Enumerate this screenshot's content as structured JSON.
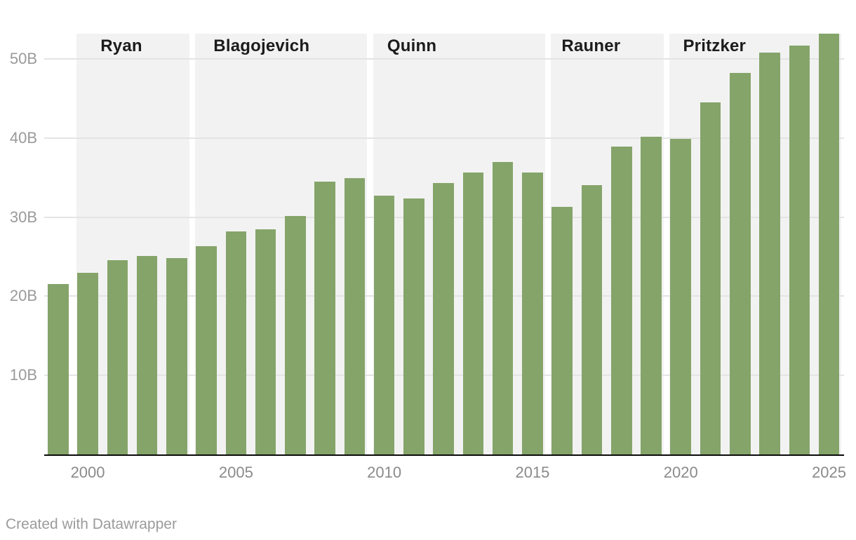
{
  "chart_data": {
    "type": "bar",
    "unit": "B",
    "x": [
      1999,
      2000,
      2001,
      2002,
      2003,
      2004,
      2005,
      2006,
      2007,
      2008,
      2009,
      2010,
      2011,
      2012,
      2013,
      2014,
      2015,
      2016,
      2017,
      2018,
      2019,
      2020,
      2021,
      2022,
      2023,
      2024,
      2025
    ],
    "values": [
      21.5,
      23.0,
      24.6,
      25.1,
      24.8,
      26.3,
      28.2,
      28.5,
      30.1,
      34.5,
      34.9,
      32.7,
      32.4,
      34.3,
      35.6,
      37.0,
      35.6,
      31.3,
      34.0,
      38.9,
      40.2,
      39.9,
      44.5,
      48.2,
      50.8,
      51.7,
      53.2
    ],
    "ylim": [
      0,
      53.5
    ],
    "y_ticks": [
      {
        "value": 10,
        "label": "10B"
      },
      {
        "value": 20,
        "label": "20B"
      },
      {
        "value": 30,
        "label": "30B"
      },
      {
        "value": 40,
        "label": "40B"
      },
      {
        "value": 50,
        "label": "50B"
      }
    ],
    "x_ticks": [
      {
        "value": 2000,
        "label": "2000"
      },
      {
        "value": 2005,
        "label": "2005"
      },
      {
        "value": 2010,
        "label": "2010"
      },
      {
        "value": 2015,
        "label": "2015"
      },
      {
        "value": 2020,
        "label": "2020"
      },
      {
        "value": 2025,
        "label": "2025"
      }
    ],
    "governor_bands": [
      {
        "label": "Ryan",
        "start_year": 2000,
        "end_year": 2003
      },
      {
        "label": "Blagojevich",
        "start_year": 2004,
        "end_year": 2009
      },
      {
        "label": "Quinn",
        "start_year": 2010,
        "end_year": 2015
      },
      {
        "label": "Rauner",
        "start_year": 2016,
        "end_year": 2019
      },
      {
        "label": "Pritzker",
        "start_year": 2020,
        "end_year": 2025
      }
    ],
    "grid": true,
    "legend": false,
    "bar_color": "#85a46a",
    "band_color": "#f2f2f2"
  },
  "footer": {
    "attribution": "Created with Datawrapper"
  }
}
